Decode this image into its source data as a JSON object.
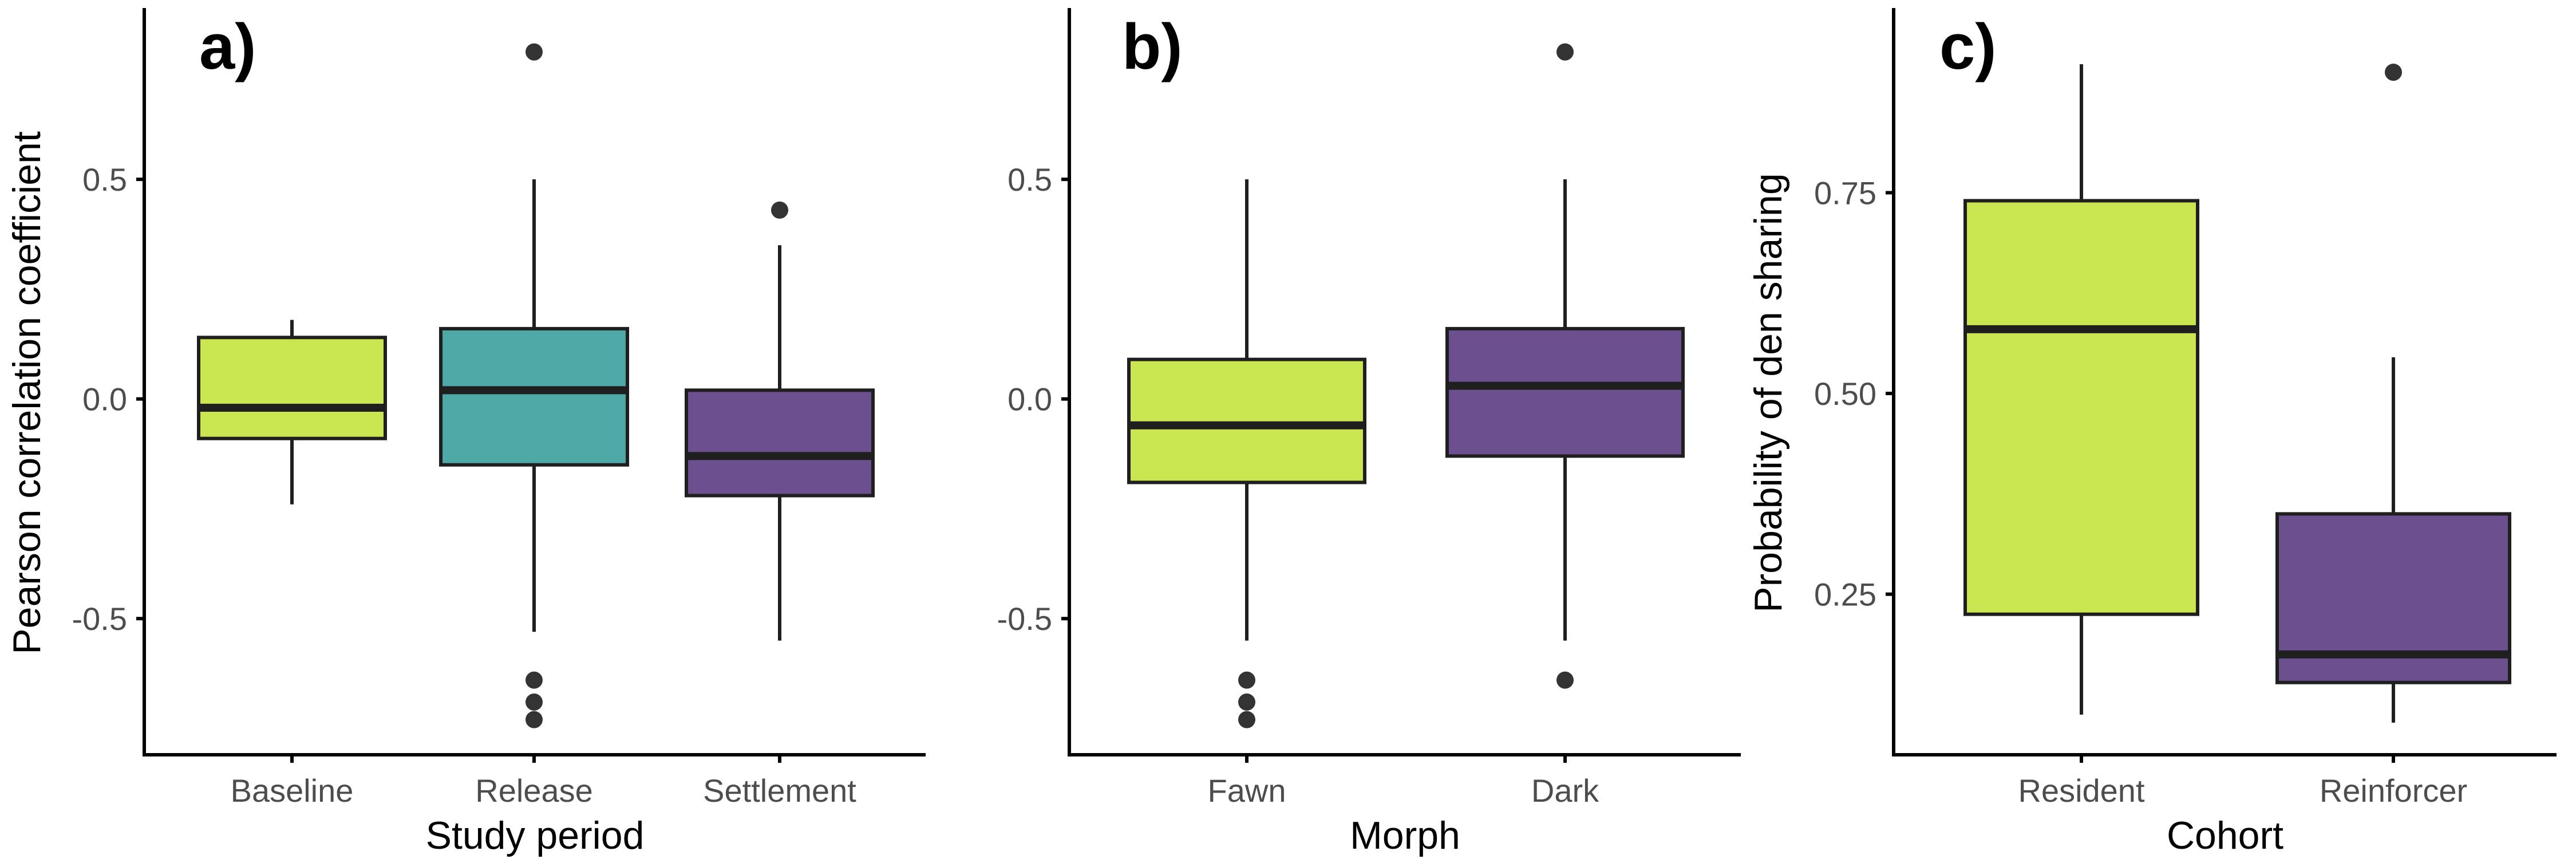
{
  "chart_data": [
    {
      "type": "box",
      "panel_tag": "a)",
      "xlabel": "Study period",
      "ylabel": "Pearson correlation coefficient",
      "ylim": [
        -0.81,
        0.89
      ],
      "yticks": [
        -0.5,
        0.0,
        0.5
      ],
      "ytick_labels": [
        "-0.5",
        "0.0",
        "0.5"
      ],
      "categories": [
        "Baseline",
        "Release",
        "Settlement"
      ],
      "boxes": [
        {
          "q1": -0.09,
          "median": -0.02,
          "q3": 0.14,
          "whisker_low": -0.24,
          "whisker_high": 0.18,
          "outliers": [],
          "color": "#c9e651"
        },
        {
          "q1": -0.15,
          "median": 0.02,
          "q3": 0.16,
          "whisker_low": -0.53,
          "whisker_high": 0.5,
          "outliers": [
            0.79,
            -0.64,
            -0.69,
            -0.73
          ],
          "color": "#4ea8a5"
        },
        {
          "q1": -0.22,
          "median": -0.13,
          "q3": 0.02,
          "whisker_low": -0.55,
          "whisker_high": 0.35,
          "outliers": [
            0.43
          ],
          "color": "#6c4f8f"
        }
      ]
    },
    {
      "type": "box",
      "panel_tag": "b)",
      "xlabel": "Morph",
      "ylabel": "",
      "ylim": [
        -0.81,
        0.89
      ],
      "yticks": [
        -0.5,
        0.0,
        0.5
      ],
      "ytick_labels": [
        "-0.5",
        "0.0",
        "0.5"
      ],
      "categories": [
        "Fawn",
        "Dark"
      ],
      "boxes": [
        {
          "q1": -0.19,
          "median": -0.06,
          "q3": 0.09,
          "whisker_low": -0.55,
          "whisker_high": 0.5,
          "outliers": [
            -0.64,
            -0.69,
            -0.73
          ],
          "color": "#c9e651"
        },
        {
          "q1": -0.13,
          "median": 0.03,
          "q3": 0.16,
          "whisker_low": -0.55,
          "whisker_high": 0.5,
          "outliers": [
            0.79,
            -0.64
          ],
          "color": "#6c4f8f"
        }
      ]
    },
    {
      "type": "box",
      "panel_tag": "c)",
      "xlabel": "Cohort",
      "ylabel": "Probability of den sharing",
      "ylim": [
        0.05,
        0.98
      ],
      "yticks": [
        0.25,
        0.5,
        0.75
      ],
      "ytick_labels": [
        "0.25",
        "0.50",
        "0.75"
      ],
      "categories": [
        "Resident",
        "Reinforcer"
      ],
      "boxes": [
        {
          "q1": 0.225,
          "median": 0.58,
          "q3": 0.74,
          "whisker_low": 0.1,
          "whisker_high": 0.91,
          "outliers": [],
          "color": "#c9e651"
        },
        {
          "q1": 0.14,
          "median": 0.175,
          "q3": 0.35,
          "whisker_low": 0.09,
          "whisker_high": 0.545,
          "outliers": [
            0.9
          ],
          "color": "#6c4f8f"
        }
      ]
    }
  ]
}
